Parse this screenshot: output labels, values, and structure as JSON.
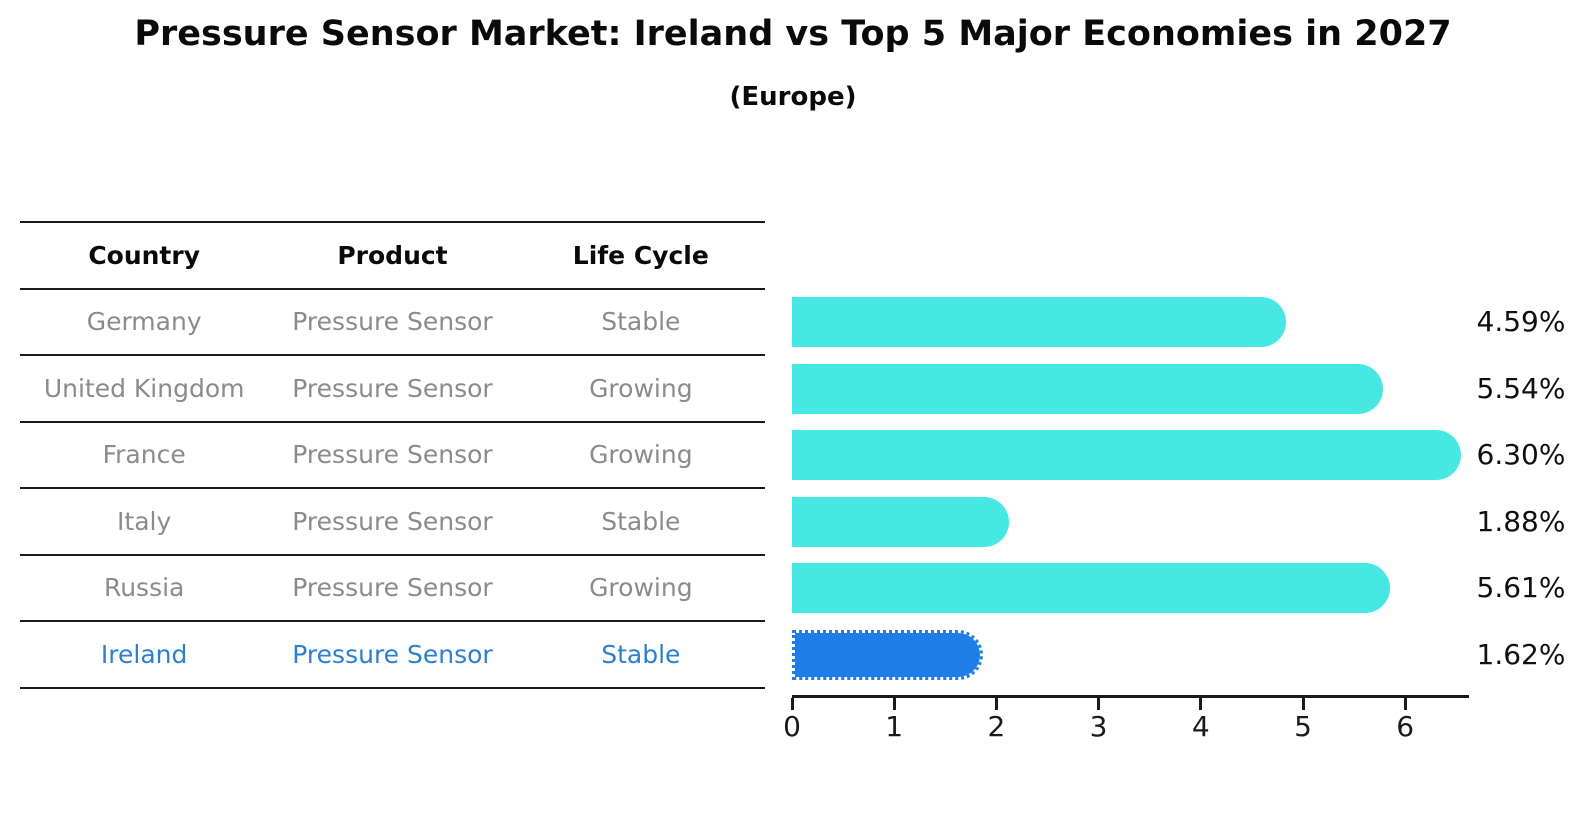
{
  "title": "Pressure Sensor Market: Ireland vs Top 5 Major Economies in 2027",
  "subtitle": "(Europe)",
  "table": {
    "headers": [
      "Country",
      "Product",
      "Life Cycle"
    ],
    "rows": [
      {
        "country": "Germany",
        "product": "Pressure Sensor",
        "life_cycle": "Stable",
        "highlighted": false
      },
      {
        "country": "United Kingdom",
        "product": "Pressure Sensor",
        "life_cycle": "Growing",
        "highlighted": false
      },
      {
        "country": "France",
        "product": "Pressure Sensor",
        "life_cycle": "Growing",
        "highlighted": false
      },
      {
        "country": "Italy",
        "product": "Pressure Sensor",
        "life_cycle": "Stable",
        "highlighted": false
      },
      {
        "country": "Russia",
        "product": "Pressure Sensor",
        "life_cycle": "Growing",
        "highlighted": false
      },
      {
        "country": "Ireland",
        "product": "Pressure Sensor",
        "life_cycle": "Stable",
        "highlighted": true
      }
    ]
  },
  "chart_data": {
    "type": "bar",
    "orientation": "horizontal",
    "title": "Pressure Sensor Market: Ireland vs Top 5 Major Economies in 2027 (Europe)",
    "categories": [
      "Germany",
      "United Kingdom",
      "France",
      "Italy",
      "Russia",
      "Ireland"
    ],
    "values": [
      4.59,
      5.54,
      6.3,
      1.88,
      5.61,
      1.62
    ],
    "value_labels": [
      "4.59%",
      "5.54%",
      "6.30%",
      "1.88%",
      "5.61%",
      "1.62%"
    ],
    "x_ticks": [
      0,
      1,
      2,
      3,
      4,
      5,
      6
    ],
    "xlim": [
      0,
      6.6
    ],
    "grid": false,
    "legend": false,
    "bar_color": "#47e8e4",
    "highlight_color": "#1f7de8",
    "highlight_index": 5,
    "highlight_style": "dotted-edge"
  },
  "colors": {
    "text_primary": "#0a0a0a",
    "text_muted": "#8b8b8b",
    "text_highlight": "#2c7fd0",
    "axis": "#1a1a1a"
  }
}
